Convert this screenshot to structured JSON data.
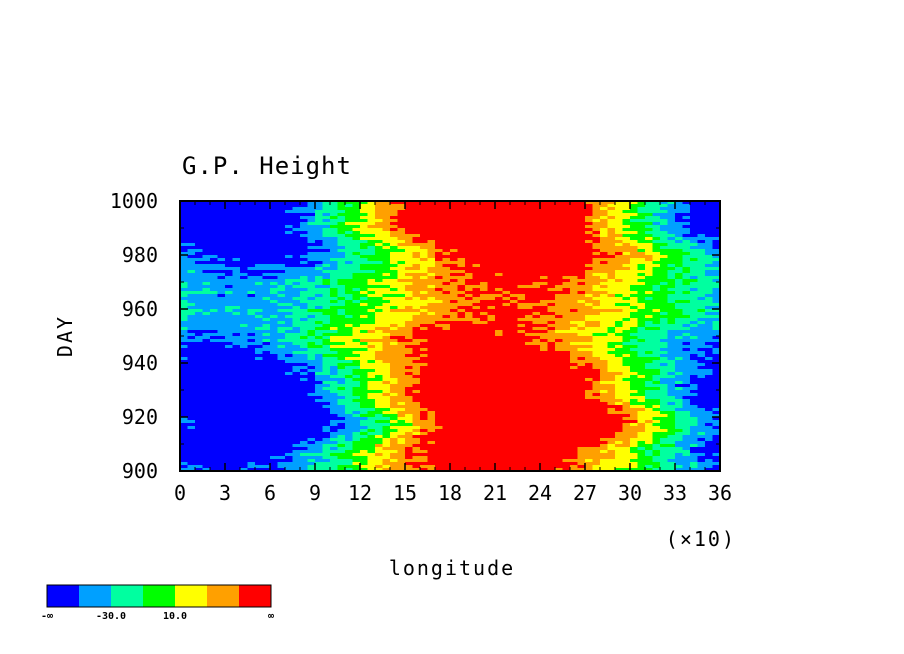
{
  "chart_data": {
    "type": "heatmap",
    "title": "G.P. Height",
    "xlabel": "longitude",
    "x_multiplier": "(×10)",
    "ylabel": "DAY",
    "xlim": [
      0,
      36
    ],
    "ylim": [
      900,
      1000
    ],
    "x_ticks": [
      "0",
      "3",
      "6",
      "9",
      "12",
      "15",
      "18",
      "21",
      "24",
      "27",
      "30",
      "33",
      "36"
    ],
    "y_ticks": [
      "900",
      "920",
      "940",
      "960",
      "980",
      "1000"
    ],
    "color_levels": [
      "#0000ff",
      "#00a0ff",
      "#00ffa0",
      "#00ff00",
      "#ffff00",
      "#ffa000",
      "#ff0000"
    ],
    "colorbar_ticks": [
      "-∞",
      "-30.0",
      "10.0",
      "∞"
    ],
    "pattern": "low values (blue) near longitude 0-90 and 330-360; high values (red) near longitude 180-250 throughout days 900-1000"
  }
}
